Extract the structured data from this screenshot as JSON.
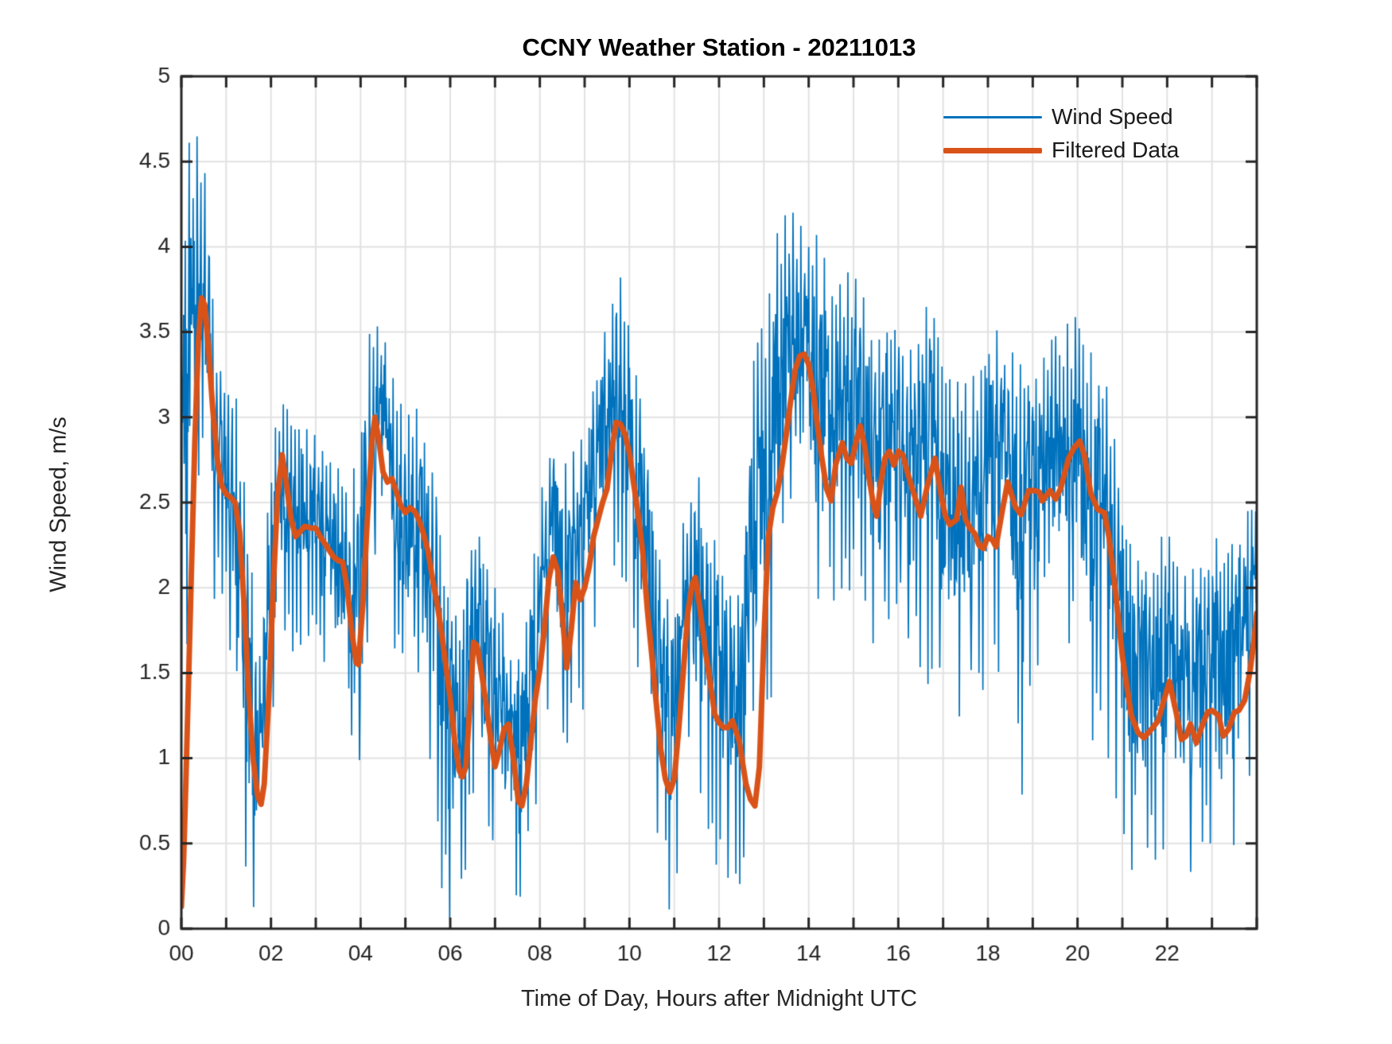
{
  "page": {
    "background": "#ffffff"
  },
  "chart_data": {
    "type": "line",
    "title": "CCNY Weather Station - 20211013",
    "xlabel": "Time of Day, Hours after Midnight UTC",
    "ylabel": "Wind Speed, m/s",
    "xlim": [
      0,
      24
    ],
    "ylim": [
      0,
      5
    ],
    "grid": true,
    "x_grid_step": 1,
    "y_grid_step": 0.5,
    "xticks_labeled": [
      0,
      2,
      4,
      6,
      8,
      10,
      12,
      14,
      16,
      18,
      20,
      22
    ],
    "xtick_labels": [
      "00",
      "02",
      "04",
      "06",
      "08",
      "10",
      "12",
      "14",
      "16",
      "18",
      "20",
      "22"
    ],
    "yticks": [
      0,
      0.5,
      1,
      1.5,
      2,
      2.5,
      3,
      3.5,
      4,
      4.5,
      5
    ],
    "ytick_labels": [
      "0",
      "0.5",
      "1",
      "1.5",
      "2",
      "2.5",
      "3",
      "3.5",
      "4",
      "4.5",
      "5"
    ],
    "legend_position": "northeast",
    "legend_boxed": false,
    "axis_color": "#262626",
    "grid_color": "#e2e2e2",
    "tick_label_color": "#262626",
    "series": [
      {
        "name": "Wind Speed",
        "color": "#0072BD",
        "line_width": 1.7,
        "style": "noisy",
        "envelope_x_step": 0.25,
        "envelope_min": [
          0.15,
          2.6,
          2.6,
          1.9,
          2.0,
          0.9,
          0.15,
          0.1,
          0.9,
          1.8,
          1.6,
          1.7,
          1.75,
          1.5,
          1.3,
          0.9,
          0.75,
          2.0,
          1.9,
          1.6,
          1.6,
          1.5,
          1.0,
          0.3,
          0.05,
          0.1,
          0.8,
          0.7,
          0.4,
          0.3,
          0.05,
          0.6,
          0.8,
          1.3,
          1.0,
          1.2,
          1.3,
          1.6,
          2.0,
          2.2,
          1.8,
          1.4,
          0.8,
          0.05,
          0.1,
          1.0,
          0.9,
          0.6,
          0.3,
          0.05,
          0.3,
          0.3,
          1.0,
          1.55,
          2.3,
          2.2,
          2.1,
          1.9,
          1.9,
          2.0,
          1.9,
          1.9,
          1.6,
          1.8,
          1.9,
          1.6,
          1.5,
          1.4,
          1.3,
          1.2,
          1.3,
          1.4,
          1.4,
          1.5,
          1.4,
          0.75,
          1.5,
          1.6,
          1.5,
          1.7,
          1.6,
          1.0,
          1.3,
          0.9,
          0.6,
          0.3,
          0.5,
          0.4,
          0.5,
          0.4,
          0.15,
          0.5,
          0.5,
          0.25,
          0.5,
          0.7,
          1.1
        ],
        "envelope_max": [
          4.45,
          4.68,
          4.6,
          3.6,
          3.2,
          3.1,
          2.3,
          1.6,
          2.8,
          3.15,
          2.95,
          2.95,
          2.9,
          2.75,
          2.7,
          2.5,
          3.0,
          3.65,
          3.5,
          3.2,
          3.0,
          3.05,
          2.9,
          2.5,
          2.0,
          1.9,
          2.45,
          2.2,
          2.0,
          1.8,
          1.6,
          1.9,
          2.5,
          2.95,
          2.7,
          2.8,
          2.9,
          3.3,
          3.55,
          3.9,
          3.5,
          3.2,
          2.6,
          2.0,
          1.9,
          2.5,
          2.75,
          2.4,
          2.2,
          2.0,
          2.0,
          3.4,
          3.6,
          4.05,
          4.2,
          4.2,
          4.0,
          4.1,
          3.7,
          3.8,
          3.9,
          3.75,
          3.5,
          3.55,
          3.5,
          3.4,
          3.45,
          3.85,
          3.3,
          3.25,
          3.2,
          3.3,
          3.55,
          3.5,
          3.4,
          3.3,
          3.3,
          3.35,
          3.5,
          3.6,
          3.7,
          3.4,
          3.3,
          3.1,
          2.6,
          2.2,
          2.1,
          2.25,
          2.35,
          2.1,
          2.05,
          2.25,
          2.35,
          2.2,
          2.3,
          2.4,
          2.65
        ]
      },
      {
        "name": "Filtered Data",
        "color": "#D95319",
        "line_width": 7,
        "style": "smooth",
        "points": [
          [
            0,
            0.13
          ],
          [
            0.05,
            0.4
          ],
          [
            0.1,
            0.85
          ],
          [
            0.2,
            1.85
          ],
          [
            0.3,
            2.85
          ],
          [
            0.38,
            3.45
          ],
          [
            0.45,
            3.7
          ],
          [
            0.52,
            3.66
          ],
          [
            0.6,
            3.42
          ],
          [
            0.7,
            3.05
          ],
          [
            0.8,
            2.76
          ],
          [
            0.9,
            2.6
          ],
          [
            1,
            2.55
          ],
          [
            1.1,
            2.53
          ],
          [
            1.2,
            2.5
          ],
          [
            1.3,
            2.33
          ],
          [
            1.4,
            1.9
          ],
          [
            1.5,
            1.4
          ],
          [
            1.6,
            1.0
          ],
          [
            1.7,
            0.78
          ],
          [
            1.78,
            0.73
          ],
          [
            1.85,
            0.85
          ],
          [
            1.95,
            1.35
          ],
          [
            2.05,
            2.0
          ],
          [
            2.15,
            2.55
          ],
          [
            2.25,
            2.78
          ],
          [
            2.35,
            2.6
          ],
          [
            2.45,
            2.4
          ],
          [
            2.55,
            2.3
          ],
          [
            2.65,
            2.33
          ],
          [
            2.75,
            2.36
          ],
          [
            2.9,
            2.35
          ],
          [
            3,
            2.35
          ],
          [
            3.1,
            2.3
          ],
          [
            3.2,
            2.26
          ],
          [
            3.3,
            2.22
          ],
          [
            3.4,
            2.18
          ],
          [
            3.5,
            2.16
          ],
          [
            3.6,
            2.15
          ],
          [
            3.7,
            2.0
          ],
          [
            3.8,
            1.75
          ],
          [
            3.9,
            1.56
          ],
          [
            3.95,
            1.55
          ],
          [
            4.05,
            1.9
          ],
          [
            4.15,
            2.4
          ],
          [
            4.25,
            2.85
          ],
          [
            4.32,
            3.0
          ],
          [
            4.4,
            2.88
          ],
          [
            4.5,
            2.68
          ],
          [
            4.6,
            2.62
          ],
          [
            4.7,
            2.64
          ],
          [
            4.8,
            2.56
          ],
          [
            4.9,
            2.48
          ],
          [
            5,
            2.44
          ],
          [
            5.1,
            2.47
          ],
          [
            5.2,
            2.45
          ],
          [
            5.3,
            2.4
          ],
          [
            5.4,
            2.32
          ],
          [
            5.5,
            2.22
          ],
          [
            5.6,
            2.06
          ],
          [
            5.7,
            1.92
          ],
          [
            5.8,
            1.75
          ],
          [
            5.9,
            1.55
          ],
          [
            6,
            1.35
          ],
          [
            6.1,
            1.1
          ],
          [
            6.2,
            0.93
          ],
          [
            6.27,
            0.89
          ],
          [
            6.35,
            0.95
          ],
          [
            6.45,
            1.35
          ],
          [
            6.52,
            1.68
          ],
          [
            6.6,
            1.66
          ],
          [
            6.7,
            1.5
          ],
          [
            6.8,
            1.32
          ],
          [
            6.9,
            1.12
          ],
          [
            7,
            0.95
          ],
          [
            7.1,
            1.05
          ],
          [
            7.2,
            1.17
          ],
          [
            7.3,
            1.2
          ],
          [
            7.42,
            0.98
          ],
          [
            7.52,
            0.75
          ],
          [
            7.6,
            0.72
          ],
          [
            7.7,
            0.85
          ],
          [
            7.8,
            1.1
          ],
          [
            7.9,
            1.35
          ],
          [
            8,
            1.52
          ],
          [
            8.1,
            1.75
          ],
          [
            8.2,
            2.05
          ],
          [
            8.3,
            2.18
          ],
          [
            8.4,
            2.1
          ],
          [
            8.5,
            1.85
          ],
          [
            8.6,
            1.53
          ],
          [
            8.7,
            1.75
          ],
          [
            8.8,
            2.03
          ],
          [
            8.9,
            1.93
          ],
          [
            9,
            2.0
          ],
          [
            9.1,
            2.12
          ],
          [
            9.2,
            2.3
          ],
          [
            9.3,
            2.4
          ],
          [
            9.4,
            2.5
          ],
          [
            9.5,
            2.58
          ],
          [
            9.6,
            2.8
          ],
          [
            9.7,
            2.97
          ],
          [
            9.8,
            2.96
          ],
          [
            9.9,
            2.9
          ],
          [
            10,
            2.79
          ],
          [
            10.1,
            2.6
          ],
          [
            10.2,
            2.42
          ],
          [
            10.3,
            2.2
          ],
          [
            10.4,
            1.87
          ],
          [
            10.5,
            1.6
          ],
          [
            10.6,
            1.32
          ],
          [
            10.7,
            1.05
          ],
          [
            10.8,
            0.88
          ],
          [
            10.9,
            0.8
          ],
          [
            11,
            0.88
          ],
          [
            11.1,
            1.17
          ],
          [
            11.2,
            1.5
          ],
          [
            11.3,
            1.85
          ],
          [
            11.4,
            2.02
          ],
          [
            11.47,
            2.06
          ],
          [
            11.55,
            1.92
          ],
          [
            11.7,
            1.62
          ],
          [
            11.8,
            1.45
          ],
          [
            11.9,
            1.26
          ],
          [
            12,
            1.21
          ],
          [
            12.1,
            1.18
          ],
          [
            12.2,
            1.18
          ],
          [
            12.3,
            1.22
          ],
          [
            12.45,
            1.1
          ],
          [
            12.6,
            0.85
          ],
          [
            12.7,
            0.76
          ],
          [
            12.8,
            0.72
          ],
          [
            12.9,
            0.95
          ],
          [
            13,
            1.7
          ],
          [
            13.1,
            2.3
          ],
          [
            13.2,
            2.47
          ],
          [
            13.3,
            2.56
          ],
          [
            13.4,
            2.71
          ],
          [
            13.5,
            2.9
          ],
          [
            13.6,
            3.1
          ],
          [
            13.7,
            3.28
          ],
          [
            13.8,
            3.36
          ],
          [
            13.9,
            3.37
          ],
          [
            14,
            3.31
          ],
          [
            14.1,
            3.16
          ],
          [
            14.2,
            2.94
          ],
          [
            14.3,
            2.75
          ],
          [
            14.4,
            2.58
          ],
          [
            14.5,
            2.51
          ],
          [
            14.6,
            2.72
          ],
          [
            14.75,
            2.85
          ],
          [
            14.85,
            2.76
          ],
          [
            14.95,
            2.73
          ],
          [
            15.05,
            2.85
          ],
          [
            15.15,
            2.95
          ],
          [
            15.25,
            2.83
          ],
          [
            15.35,
            2.64
          ],
          [
            15.45,
            2.48
          ],
          [
            15.52,
            2.42
          ],
          [
            15.6,
            2.6
          ],
          [
            15.7,
            2.76
          ],
          [
            15.8,
            2.8
          ],
          [
            15.9,
            2.72
          ],
          [
            16,
            2.8
          ],
          [
            16.1,
            2.78
          ],
          [
            16.2,
            2.68
          ],
          [
            16.35,
            2.55
          ],
          [
            16.5,
            2.42
          ],
          [
            16.65,
            2.6
          ],
          [
            16.82,
            2.76
          ],
          [
            16.95,
            2.55
          ],
          [
            17.05,
            2.42
          ],
          [
            17.15,
            2.37
          ],
          [
            17.3,
            2.4
          ],
          [
            17.4,
            2.59
          ],
          [
            17.5,
            2.4
          ],
          [
            17.6,
            2.35
          ],
          [
            17.7,
            2.32
          ],
          [
            17.8,
            2.25
          ],
          [
            17.9,
            2.23
          ],
          [
            18,
            2.3
          ],
          [
            18.1,
            2.28
          ],
          [
            18.18,
            2.24
          ],
          [
            18.32,
            2.45
          ],
          [
            18.44,
            2.62
          ],
          [
            18.62,
            2.47
          ],
          [
            18.74,
            2.43
          ],
          [
            18.91,
            2.57
          ],
          [
            19.05,
            2.57
          ],
          [
            19.15,
            2.56
          ],
          [
            19.21,
            2.51
          ],
          [
            19.39,
            2.57
          ],
          [
            19.51,
            2.52
          ],
          [
            19.62,
            2.58
          ],
          [
            19.8,
            2.76
          ],
          [
            19.92,
            2.82
          ],
          [
            20.05,
            2.86
          ],
          [
            20.15,
            2.78
          ],
          [
            20.3,
            2.55
          ],
          [
            20.45,
            2.46
          ],
          [
            20.6,
            2.44
          ],
          [
            20.7,
            2.3
          ],
          [
            20.85,
            1.97
          ],
          [
            21,
            1.6
          ],
          [
            21.2,
            1.25
          ],
          [
            21.35,
            1.15
          ],
          [
            21.48,
            1.12
          ],
          [
            21.65,
            1.17
          ],
          [
            21.8,
            1.22
          ],
          [
            21.95,
            1.36
          ],
          [
            22.05,
            1.45
          ],
          [
            22.2,
            1.27
          ],
          [
            22.32,
            1.11
          ],
          [
            22.42,
            1.13
          ],
          [
            22.52,
            1.2
          ],
          [
            22.65,
            1.09
          ],
          [
            22.78,
            1.19
          ],
          [
            22.9,
            1.27
          ],
          [
            23,
            1.28
          ],
          [
            23.15,
            1.25
          ],
          [
            23.25,
            1.13
          ],
          [
            23.37,
            1.17
          ],
          [
            23.5,
            1.27
          ],
          [
            23.6,
            1.28
          ],
          [
            23.73,
            1.34
          ],
          [
            23.85,
            1.51
          ],
          [
            23.95,
            1.72
          ],
          [
            24,
            1.85
          ]
        ]
      }
    ],
    "render": {
      "noise_seed": 20211013,
      "noise_step_hours": 0.0125
    }
  }
}
